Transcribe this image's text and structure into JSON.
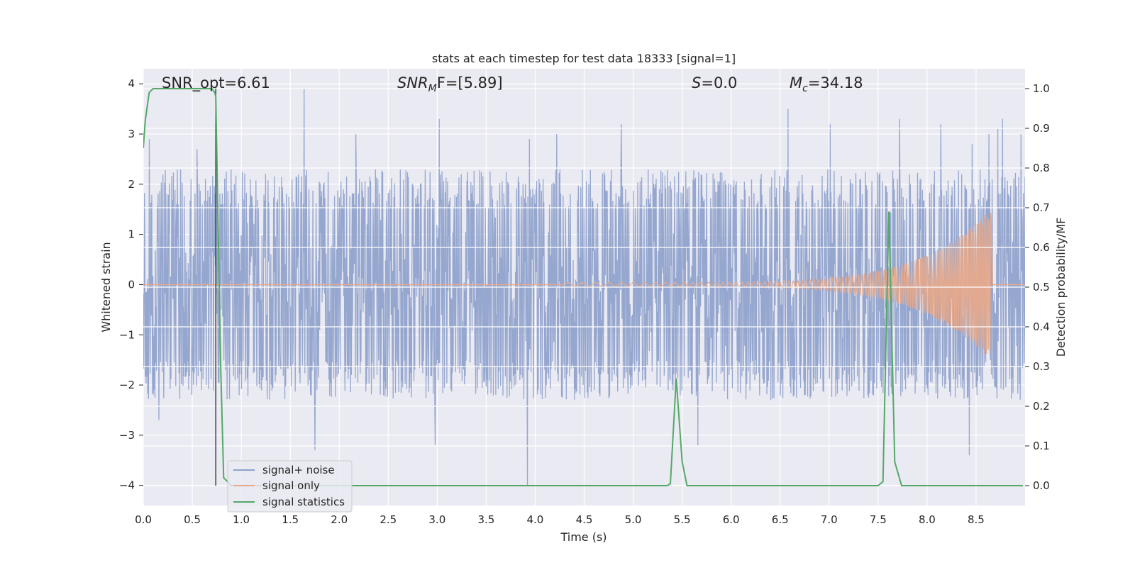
{
  "chart_data": {
    "type": "line",
    "title": "stats at each timestep for test data 18333 [signal=1]",
    "xlabel": "Time (s)",
    "ylabel": "Whitened strain",
    "ylabel_right": "Detection probability/MF",
    "xlim": [
      0.0,
      9.0
    ],
    "ylim": [
      -4.4,
      4.3
    ],
    "ylim_right": [
      -0.05,
      1.05
    ],
    "x_ticks": [
      0.0,
      0.5,
      1.0,
      1.5,
      2.0,
      2.5,
      3.0,
      3.5,
      4.0,
      4.5,
      5.0,
      5.5,
      6.0,
      6.5,
      7.0,
      7.5,
      8.0,
      8.5
    ],
    "x_tick_labels": [
      "0.0",
      "0.5",
      "1.0",
      "1.5",
      "2.0",
      "2.5",
      "3.0",
      "3.5",
      "4.0",
      "4.5",
      "5.0",
      "5.5",
      "6.0",
      "6.5",
      "7.0",
      "7.5",
      "8.0",
      "8.5"
    ],
    "y_ticks": [
      -4,
      -3,
      -2,
      -1,
      0,
      1,
      2,
      3,
      4
    ],
    "y_tick_labels": [
      "−4",
      "−3",
      "−2",
      "−1",
      "0",
      "1",
      "2",
      "3",
      "4"
    ],
    "y_ticks_right": [
      0.0,
      0.1,
      0.2,
      0.3,
      0.4,
      0.5,
      0.6,
      0.7,
      0.8,
      0.9,
      1.0
    ],
    "y_tick_labels_right": [
      "0.0",
      "0.1",
      "0.2",
      "0.3",
      "0.4",
      "0.5",
      "0.6",
      "0.7",
      "0.8",
      "0.9",
      "1.0"
    ],
    "annotations": {
      "snr_opt": "SNR_opt=6.61",
      "snr_mf_main": "SNR",
      "snr_mf_sub": "M",
      "snr_mf_tail": "F=[5.89]",
      "s_main": "S",
      "s_tail": "=0.0",
      "mc_main": "M",
      "mc_sub": "c",
      "mc_tail": "=34.18"
    },
    "marker_line_x": 0.74,
    "grid": true,
    "legend_position": "lower-left",
    "series": [
      {
        "name": "signal+ noise",
        "color": "#8da0cb",
        "axis": "left",
        "noise_band": [
          -1.6,
          1.6
        ],
        "samples": 2200,
        "seed": 18333,
        "peaks": [
          {
            "x": 0.06,
            "y": 2.9
          },
          {
            "x": 0.16,
            "y": -2.7
          },
          {
            "x": 0.55,
            "y": 2.7
          },
          {
            "x": 1.64,
            "y": 3.9
          },
          {
            "x": 1.75,
            "y": -3.3
          },
          {
            "x": 2.17,
            "y": 3.0
          },
          {
            "x": 2.98,
            "y": -3.2
          },
          {
            "x": 3.02,
            "y": 3.3
          },
          {
            "x": 3.92,
            "y": -4.0
          },
          {
            "x": 3.94,
            "y": 2.9
          },
          {
            "x": 4.22,
            "y": 3.0
          },
          {
            "x": 4.88,
            "y": 3.2
          },
          {
            "x": 5.66,
            "y": -3.2
          },
          {
            "x": 6.58,
            "y": 3.5
          },
          {
            "x": 7.01,
            "y": 3.2
          },
          {
            "x": 7.72,
            "y": 3.3
          },
          {
            "x": 8.14,
            "y": 3.2
          },
          {
            "x": 8.43,
            "y": -3.4
          },
          {
            "x": 8.46,
            "y": 2.8
          },
          {
            "x": 8.63,
            "y": 3.0
          },
          {
            "x": 8.72,
            "y": 3.1
          },
          {
            "x": 8.77,
            "y": 3.3
          },
          {
            "x": 8.96,
            "y": 3.0
          }
        ]
      },
      {
        "name": "signal only",
        "color": "#e5a98c",
        "axis": "left",
        "chirp": {
          "start": 4.3,
          "merger": 8.65,
          "end": 8.67,
          "amp_start": 0.04,
          "amp_peak": 1.5,
          "freq_start": 7,
          "freq_end": 60
        }
      },
      {
        "name": "signal statistics",
        "color": "#55a868",
        "axis": "right",
        "x": [
          0.0,
          0.02,
          0.06,
          0.1,
          0.2,
          0.3,
          0.4,
          0.5,
          0.6,
          0.65,
          0.7,
          0.73,
          0.74,
          0.76,
          0.79,
          0.82,
          0.9,
          1.0,
          2.0,
          3.0,
          4.0,
          5.0,
          5.35,
          5.38,
          5.44,
          5.5,
          5.55,
          6.0,
          7.0,
          7.5,
          7.55,
          7.61,
          7.67,
          7.74,
          8.0,
          8.5,
          8.98
        ],
        "y": [
          0.85,
          0.92,
          0.99,
          1.0,
          1.0,
          1.0,
          1.0,
          1.0,
          1.0,
          1.0,
          1.0,
          0.99,
          0.98,
          0.7,
          0.3,
          0.02,
          0.0,
          0.0,
          0.0,
          0.0,
          0.0,
          0.0,
          0.0,
          0.005,
          0.27,
          0.06,
          0.0,
          0.0,
          0.0,
          0.0,
          0.01,
          0.69,
          0.06,
          0.0,
          0.0,
          0.0,
          0.0
        ]
      }
    ]
  }
}
